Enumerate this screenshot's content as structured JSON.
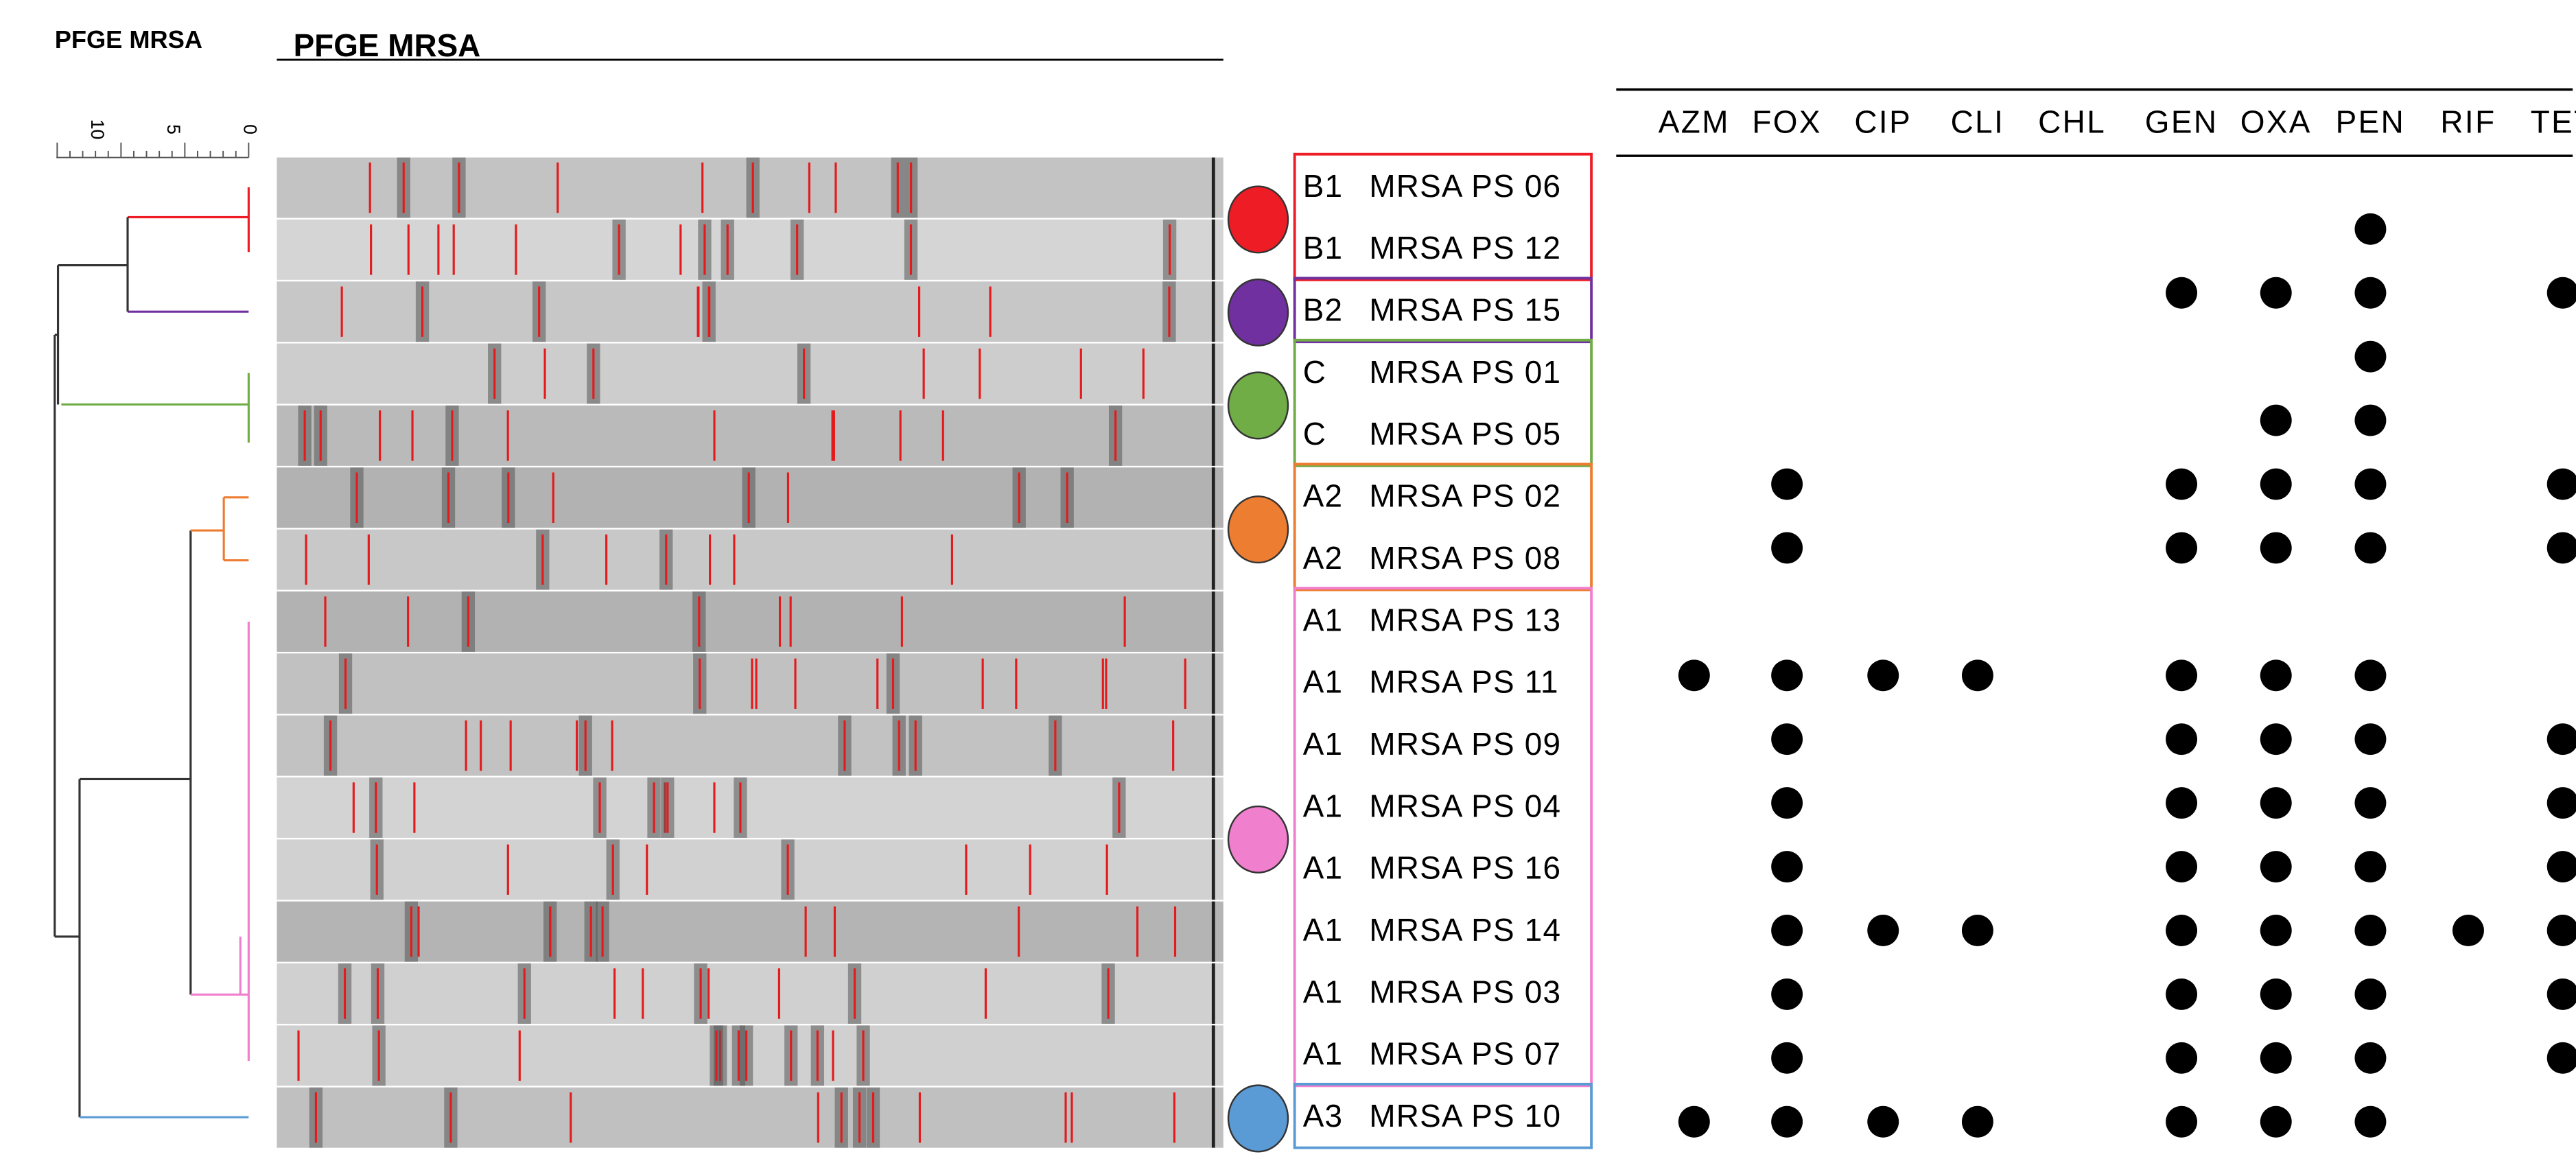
{
  "figure_title": "PFGE MRSA",
  "gel_title": "PFGE MRSA",
  "scale_ticks": [
    "10",
    "5",
    "0"
  ],
  "antibiotics": [
    "AZM",
    "FOX",
    "CIP",
    "CLI",
    "CHL",
    "GEN",
    "OXA",
    "PEN",
    "RIF",
    "TET"
  ],
  "cluster_colors": {
    "B1": "#ee1c25",
    "B2": "#7030a0",
    "C": "#70ad47",
    "A2": "#ed7d31",
    "A1": "#f07fce",
    "A3": "#5b9bd5"
  },
  "rows": [
    {
      "cluster": "B1",
      "isolate": "MRSA PS 06",
      "resistant": []
    },
    {
      "cluster": "B1",
      "isolate": "MRSA PS 12",
      "resistant": [
        "PEN"
      ]
    },
    {
      "cluster": "B2",
      "isolate": "MRSA PS 15",
      "resistant": [
        "GEN",
        "OXA",
        "PEN",
        "TET"
      ]
    },
    {
      "cluster": "C",
      "isolate": "MRSA PS 01",
      "resistant": [
        "PEN"
      ]
    },
    {
      "cluster": "C",
      "isolate": "MRSA PS 05",
      "resistant": [
        "OXA",
        "PEN"
      ]
    },
    {
      "cluster": "A2",
      "isolate": "MRSA PS 02",
      "resistant": [
        "FOX",
        "GEN",
        "OXA",
        "PEN",
        "TET"
      ]
    },
    {
      "cluster": "A2",
      "isolate": "MRSA PS 08",
      "resistant": [
        "FOX",
        "GEN",
        "OXA",
        "PEN",
        "TET"
      ]
    },
    {
      "cluster": "A1",
      "isolate": "MRSA PS 13",
      "resistant": []
    },
    {
      "cluster": "A1",
      "isolate": "MRSA PS 11",
      "resistant": [
        "AZM",
        "FOX",
        "CIP",
        "CLI",
        "GEN",
        "OXA",
        "PEN"
      ]
    },
    {
      "cluster": "A1",
      "isolate": "MRSA PS 09",
      "resistant": [
        "FOX",
        "GEN",
        "OXA",
        "PEN",
        "TET"
      ]
    },
    {
      "cluster": "A1",
      "isolate": "MRSA PS 04",
      "resistant": [
        "FOX",
        "GEN",
        "OXA",
        "PEN",
        "TET"
      ]
    },
    {
      "cluster": "A1",
      "isolate": "MRSA PS 16",
      "resistant": [
        "FOX",
        "GEN",
        "OXA",
        "PEN",
        "TET"
      ]
    },
    {
      "cluster": "A1",
      "isolate": "MRSA PS 14",
      "resistant": [
        "FOX",
        "CIP",
        "CLI",
        "GEN",
        "OXA",
        "PEN",
        "RIF",
        "TET"
      ]
    },
    {
      "cluster": "A1",
      "isolate": "MRSA PS 03",
      "resistant": [
        "FOX",
        "GEN",
        "OXA",
        "PEN",
        "TET"
      ]
    },
    {
      "cluster": "A1",
      "isolate": "MRSA PS 07",
      "resistant": [
        "FOX",
        "GEN",
        "OXA",
        "PEN",
        "TET"
      ]
    },
    {
      "cluster": "A3",
      "isolate": "MRSA PS 10",
      "resistant": [
        "AZM",
        "FOX",
        "CIP",
        "CLI",
        "GEN",
        "OXA",
        "PEN"
      ]
    }
  ]
}
